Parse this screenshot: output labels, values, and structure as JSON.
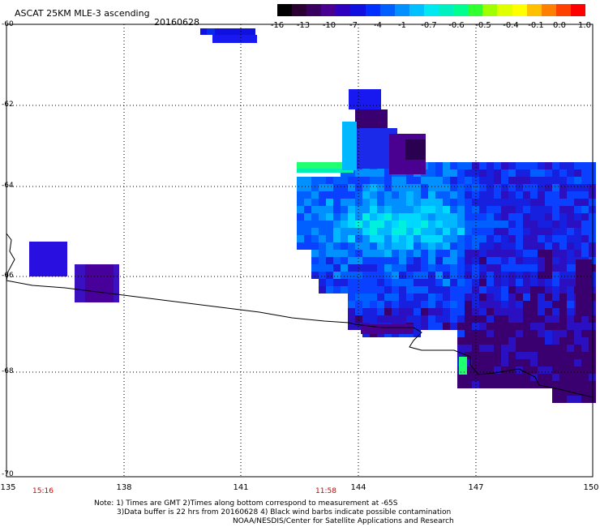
{
  "header": {
    "title": "ASCAT 25KM MLE-3 ascending",
    "date": "20160628"
  },
  "colorbar": {
    "labels": [
      "-16",
      "-13",
      "-10",
      "-7",
      "-4",
      "-1",
      "-0.7",
      "-0.6",
      "-0.5",
      "-0.4",
      "-0.1",
      "0.0",
      "1.0"
    ],
    "colors": [
      "#000000",
      "#2a0030",
      "#3a0060",
      "#4a0090",
      "#3000c0",
      "#1010e0",
      "#0030ff",
      "#0060ff",
      "#0090ff",
      "#00c0ff",
      "#00e8f0",
      "#00f0c0",
      "#00ff90",
      "#30ff30",
      "#a0ff00",
      "#e0ff00",
      "#ffff00",
      "#ffc000",
      "#ff8000",
      "#ff4000",
      "#ff0000"
    ]
  },
  "axes": {
    "lat_labels": [
      "-60",
      "-62",
      "-64",
      "-66",
      "-68",
      "-70"
    ],
    "lon_labels": [
      "135",
      "138",
      "141",
      "144",
      "147",
      "150"
    ]
  },
  "times": {
    "t1": "15:16",
    "t2": "11:58"
  },
  "notes": {
    "line1": "Note: 1) Times are GMT 2)Times along bottom correspond to measurement at -65S",
    "line2": "3)Data buffer is 22 hrs from 20160628 4) Black wind barbs indicate possible contamination",
    "line3": "NOAA/NESDIS/Center for Satellite Applications and Research"
  }
}
